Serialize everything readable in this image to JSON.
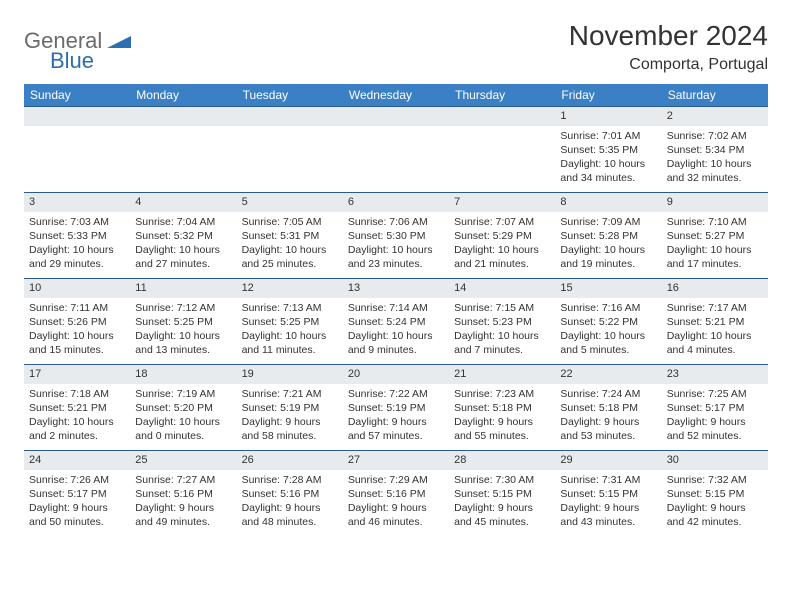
{
  "brand": {
    "name1": "General",
    "name2": "Blue",
    "color_gray": "#6b6b6b",
    "color_blue": "#2b6fb0",
    "shape_color": "#2b6fb0"
  },
  "title": "November 2024",
  "location": "Comporta, Portugal",
  "colors": {
    "header_bg": "#3b7fc4",
    "header_text": "#ffffff",
    "daynum_bg": "#e8ebee",
    "cell_border": "#2b5a8c",
    "text": "#333333"
  },
  "weekdays": [
    "Sunday",
    "Monday",
    "Tuesday",
    "Wednesday",
    "Thursday",
    "Friday",
    "Saturday"
  ],
  "weeks": [
    [
      null,
      null,
      null,
      null,
      null,
      {
        "n": "1",
        "sr": "Sunrise: 7:01 AM",
        "ss": "Sunset: 5:35 PM",
        "dl": "Daylight: 10 hours and 34 minutes."
      },
      {
        "n": "2",
        "sr": "Sunrise: 7:02 AM",
        "ss": "Sunset: 5:34 PM",
        "dl": "Daylight: 10 hours and 32 minutes."
      }
    ],
    [
      {
        "n": "3",
        "sr": "Sunrise: 7:03 AM",
        "ss": "Sunset: 5:33 PM",
        "dl": "Daylight: 10 hours and 29 minutes."
      },
      {
        "n": "4",
        "sr": "Sunrise: 7:04 AM",
        "ss": "Sunset: 5:32 PM",
        "dl": "Daylight: 10 hours and 27 minutes."
      },
      {
        "n": "5",
        "sr": "Sunrise: 7:05 AM",
        "ss": "Sunset: 5:31 PM",
        "dl": "Daylight: 10 hours and 25 minutes."
      },
      {
        "n": "6",
        "sr": "Sunrise: 7:06 AM",
        "ss": "Sunset: 5:30 PM",
        "dl": "Daylight: 10 hours and 23 minutes."
      },
      {
        "n": "7",
        "sr": "Sunrise: 7:07 AM",
        "ss": "Sunset: 5:29 PM",
        "dl": "Daylight: 10 hours and 21 minutes."
      },
      {
        "n": "8",
        "sr": "Sunrise: 7:09 AM",
        "ss": "Sunset: 5:28 PM",
        "dl": "Daylight: 10 hours and 19 minutes."
      },
      {
        "n": "9",
        "sr": "Sunrise: 7:10 AM",
        "ss": "Sunset: 5:27 PM",
        "dl": "Daylight: 10 hours and 17 minutes."
      }
    ],
    [
      {
        "n": "10",
        "sr": "Sunrise: 7:11 AM",
        "ss": "Sunset: 5:26 PM",
        "dl": "Daylight: 10 hours and 15 minutes."
      },
      {
        "n": "11",
        "sr": "Sunrise: 7:12 AM",
        "ss": "Sunset: 5:25 PM",
        "dl": "Daylight: 10 hours and 13 minutes."
      },
      {
        "n": "12",
        "sr": "Sunrise: 7:13 AM",
        "ss": "Sunset: 5:25 PM",
        "dl": "Daylight: 10 hours and 11 minutes."
      },
      {
        "n": "13",
        "sr": "Sunrise: 7:14 AM",
        "ss": "Sunset: 5:24 PM",
        "dl": "Daylight: 10 hours and 9 minutes."
      },
      {
        "n": "14",
        "sr": "Sunrise: 7:15 AM",
        "ss": "Sunset: 5:23 PM",
        "dl": "Daylight: 10 hours and 7 minutes."
      },
      {
        "n": "15",
        "sr": "Sunrise: 7:16 AM",
        "ss": "Sunset: 5:22 PM",
        "dl": "Daylight: 10 hours and 5 minutes."
      },
      {
        "n": "16",
        "sr": "Sunrise: 7:17 AM",
        "ss": "Sunset: 5:21 PM",
        "dl": "Daylight: 10 hours and 4 minutes."
      }
    ],
    [
      {
        "n": "17",
        "sr": "Sunrise: 7:18 AM",
        "ss": "Sunset: 5:21 PM",
        "dl": "Daylight: 10 hours and 2 minutes."
      },
      {
        "n": "18",
        "sr": "Sunrise: 7:19 AM",
        "ss": "Sunset: 5:20 PM",
        "dl": "Daylight: 10 hours and 0 minutes."
      },
      {
        "n": "19",
        "sr": "Sunrise: 7:21 AM",
        "ss": "Sunset: 5:19 PM",
        "dl": "Daylight: 9 hours and 58 minutes."
      },
      {
        "n": "20",
        "sr": "Sunrise: 7:22 AM",
        "ss": "Sunset: 5:19 PM",
        "dl": "Daylight: 9 hours and 57 minutes."
      },
      {
        "n": "21",
        "sr": "Sunrise: 7:23 AM",
        "ss": "Sunset: 5:18 PM",
        "dl": "Daylight: 9 hours and 55 minutes."
      },
      {
        "n": "22",
        "sr": "Sunrise: 7:24 AM",
        "ss": "Sunset: 5:18 PM",
        "dl": "Daylight: 9 hours and 53 minutes."
      },
      {
        "n": "23",
        "sr": "Sunrise: 7:25 AM",
        "ss": "Sunset: 5:17 PM",
        "dl": "Daylight: 9 hours and 52 minutes."
      }
    ],
    [
      {
        "n": "24",
        "sr": "Sunrise: 7:26 AM",
        "ss": "Sunset: 5:17 PM",
        "dl": "Daylight: 9 hours and 50 minutes."
      },
      {
        "n": "25",
        "sr": "Sunrise: 7:27 AM",
        "ss": "Sunset: 5:16 PM",
        "dl": "Daylight: 9 hours and 49 minutes."
      },
      {
        "n": "26",
        "sr": "Sunrise: 7:28 AM",
        "ss": "Sunset: 5:16 PM",
        "dl": "Daylight: 9 hours and 48 minutes."
      },
      {
        "n": "27",
        "sr": "Sunrise: 7:29 AM",
        "ss": "Sunset: 5:16 PM",
        "dl": "Daylight: 9 hours and 46 minutes."
      },
      {
        "n": "28",
        "sr": "Sunrise: 7:30 AM",
        "ss": "Sunset: 5:15 PM",
        "dl": "Daylight: 9 hours and 45 minutes."
      },
      {
        "n": "29",
        "sr": "Sunrise: 7:31 AM",
        "ss": "Sunset: 5:15 PM",
        "dl": "Daylight: 9 hours and 43 minutes."
      },
      {
        "n": "30",
        "sr": "Sunrise: 7:32 AM",
        "ss": "Sunset: 5:15 PM",
        "dl": "Daylight: 9 hours and 42 minutes."
      }
    ]
  ]
}
